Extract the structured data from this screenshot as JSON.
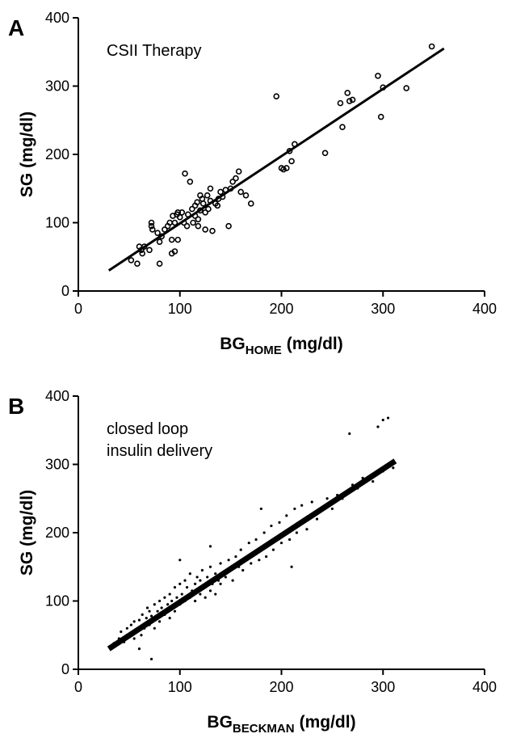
{
  "chart_data": [
    {
      "type": "scatter",
      "panel_label": "A",
      "annotation": [
        "CSII Therapy"
      ],
      "xlabel": {
        "base": "BG",
        "subscript": "HOME",
        "unit": "(mg/dl)"
      },
      "ylabel": "SG (mg/dl)",
      "marker": "open-circle",
      "color": "#000000",
      "xlim": [
        0,
        400
      ],
      "ylim": [
        0,
        400
      ],
      "xticks": [
        0,
        100,
        200,
        300,
        400
      ],
      "yticks": [
        0,
        100,
        200,
        300,
        400
      ],
      "grid": false,
      "fit_line": {
        "x": [
          30,
          360
        ],
        "y": [
          30,
          355
        ],
        "width": 3
      },
      "x": [
        52,
        58,
        60,
        62,
        63,
        65,
        70,
        72,
        72,
        73,
        78,
        80,
        80,
        82,
        85,
        88,
        90,
        92,
        92,
        93,
        95,
        95,
        97,
        98,
        98,
        100,
        102,
        104,
        105,
        107,
        108,
        110,
        112,
        113,
        115,
        115,
        117,
        118,
        118,
        120,
        120,
        122,
        123,
        125,
        125,
        127,
        128,
        130,
        130,
        132,
        135,
        137,
        138,
        140,
        142,
        145,
        148,
        150,
        152,
        155,
        158,
        160,
        165,
        170,
        195,
        200,
        202,
        205,
        208,
        210,
        213,
        243,
        258,
        260,
        265,
        267,
        270,
        295,
        298,
        300,
        323,
        348
      ],
      "y": [
        45,
        40,
        65,
        60,
        55,
        65,
        60,
        100,
        95,
        90,
        85,
        40,
        72,
        80,
        90,
        95,
        100,
        75,
        55,
        110,
        58,
        100,
        112,
        115,
        75,
        108,
        115,
        100,
        172,
        95,
        112,
        160,
        120,
        100,
        110,
        125,
        130,
        95,
        105,
        140,
        118,
        135,
        128,
        90,
        115,
        140,
        120,
        150,
        132,
        88,
        128,
        125,
        135,
        145,
        138,
        148,
        95,
        150,
        160,
        165,
        175,
        145,
        140,
        128,
        285,
        180,
        178,
        180,
        205,
        190,
        215,
        202,
        275,
        240,
        290,
        278,
        280,
        315,
        255,
        298,
        297,
        358
      ]
    },
    {
      "type": "scatter",
      "panel_label": "B",
      "annotation": [
        "closed loop",
        "insulin delivery"
      ],
      "xlabel": {
        "base": "BG",
        "subscript": "BECKMAN",
        "unit": "(mg/dl)"
      },
      "ylabel": "SG (mg/dl)",
      "marker": "dot",
      "color": "#000000",
      "xlim": [
        0,
        400
      ],
      "ylim": [
        0,
        400
      ],
      "xticks": [
        0,
        100,
        200,
        300,
        400
      ],
      "yticks": [
        0,
        100,
        200,
        300,
        400
      ],
      "grid": false,
      "fit_line": {
        "x": [
          30,
          312
        ],
        "y": [
          30,
          305
        ],
        "width": 7
      },
      "x": [
        35,
        40,
        42,
        45,
        48,
        50,
        52,
        55,
        55,
        58,
        60,
        62,
        63,
        65,
        67,
        68,
        70,
        70,
        72,
        75,
        75,
        78,
        80,
        80,
        82,
        85,
        85,
        88,
        90,
        90,
        92,
        95,
        95,
        97,
        100,
        100,
        102,
        105,
        105,
        107,
        110,
        110,
        112,
        115,
        115,
        117,
        120,
        120,
        122,
        125,
        125,
        127,
        130,
        130,
        132,
        135,
        135,
        138,
        140,
        140,
        142,
        145,
        148,
        150,
        152,
        155,
        158,
        160,
        162,
        165,
        168,
        170,
        172,
        175,
        178,
        180,
        183,
        185,
        188,
        190,
        192,
        195,
        198,
        200,
        203,
        205,
        208,
        210,
        213,
        215,
        218,
        220,
        225,
        228,
        230,
        235,
        240,
        245,
        250,
        255,
        260,
        265,
        270,
        275,
        280,
        290,
        300,
        310,
        267,
        295,
        300,
        305,
        72,
        60,
        130,
        100,
        180,
        210
      ],
      "y": [
        38,
        45,
        55,
        40,
        60,
        50,
        65,
        45,
        70,
        55,
        72,
        50,
        80,
        60,
        75,
        90,
        65,
        85,
        78,
        95,
        60,
        85,
        100,
        70,
        90,
        105,
        80,
        95,
        110,
        75,
        100,
        120,
        85,
        105,
        125,
        95,
        110,
        130,
        100,
        120,
        140,
        105,
        115,
        125,
        100,
        135,
        110,
        130,
        145,
        120,
        105,
        135,
        150,
        115,
        125,
        140,
        110,
        130,
        155,
        125,
        140,
        135,
        160,
        145,
        130,
        165,
        150,
        175,
        145,
        160,
        185,
        155,
        170,
        190,
        160,
        175,
        200,
        165,
        185,
        210,
        175,
        190,
        215,
        185,
        200,
        225,
        190,
        205,
        235,
        200,
        215,
        240,
        205,
        225,
        245,
        220,
        235,
        250,
        235,
        255,
        250,
        260,
        270,
        265,
        280,
        275,
        290,
        295,
        345,
        355,
        365,
        368,
        15,
        30,
        180,
        160,
        235,
        150
      ]
    }
  ]
}
